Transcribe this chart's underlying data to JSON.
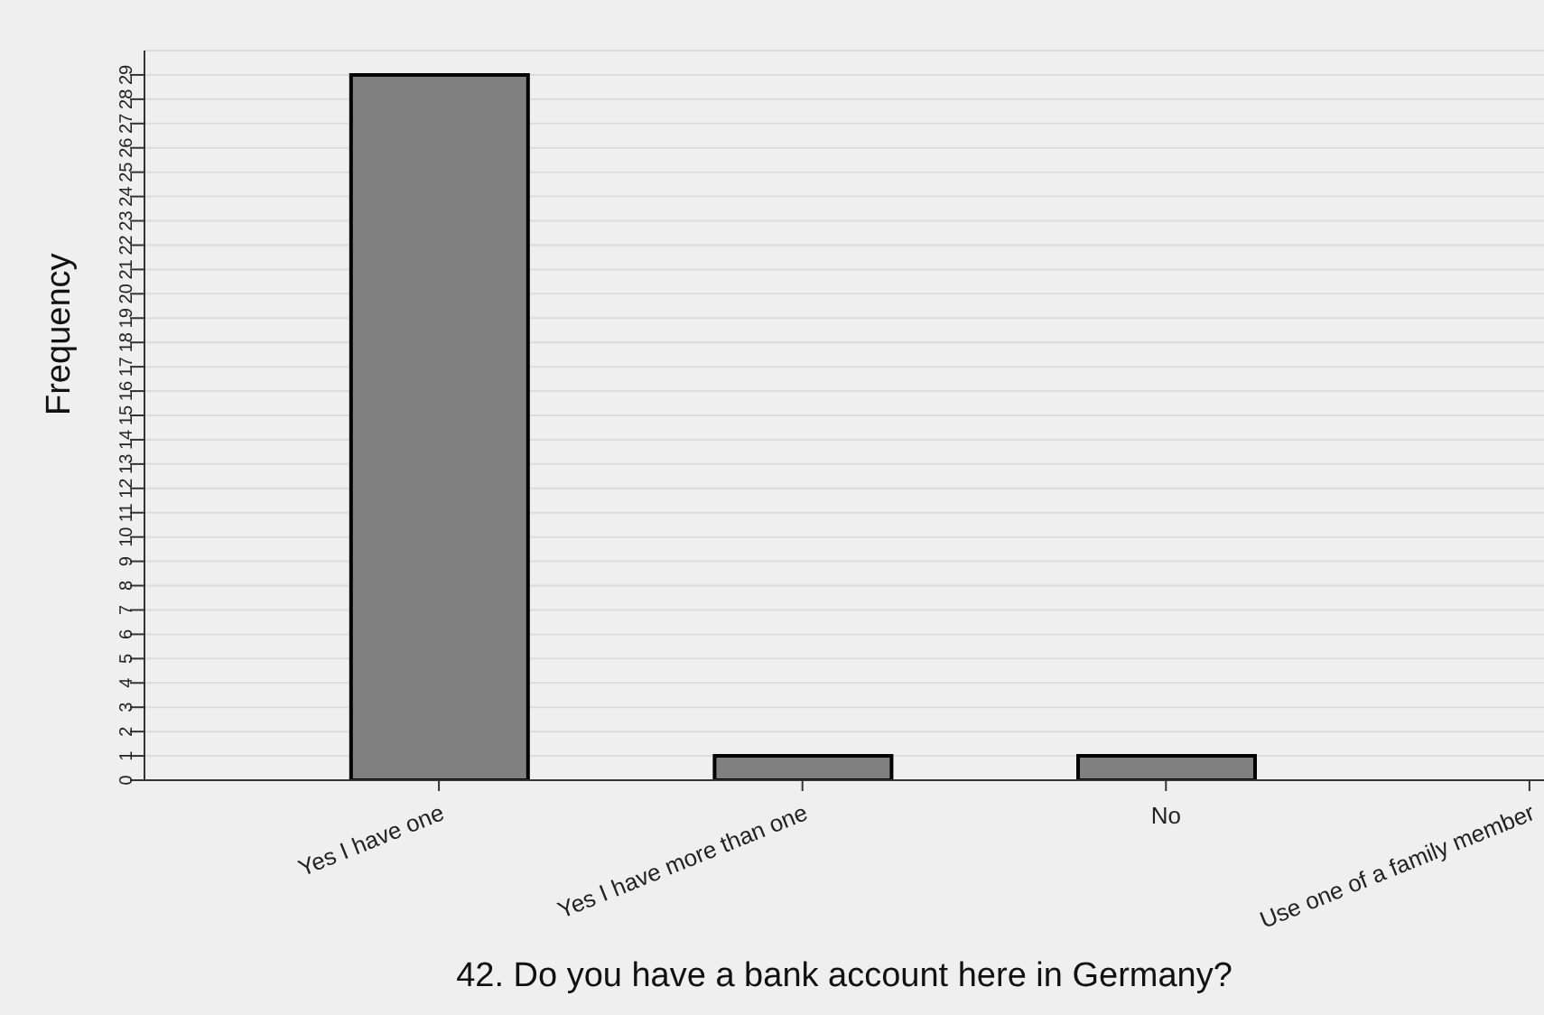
{
  "chart_data": {
    "type": "bar",
    "xlabel": "42. Do you have a bank account here in Germany?",
    "ylabel": "Frequency",
    "categories": [
      "Yes I have one",
      "Yes I have more than one",
      "No",
      "Use one of a family member"
    ],
    "values": [
      29,
      1,
      1,
      0
    ],
    "color": "#808080",
    "ylim": [
      0,
      30
    ],
    "yticks": [
      0,
      1,
      2,
      3,
      4,
      5,
      6,
      7,
      8,
      9,
      10,
      11,
      12,
      13,
      14,
      15,
      16,
      17,
      18,
      19,
      20,
      21,
      22,
      23,
      24,
      25,
      26,
      27,
      28,
      29
    ],
    "grid": "y"
  }
}
